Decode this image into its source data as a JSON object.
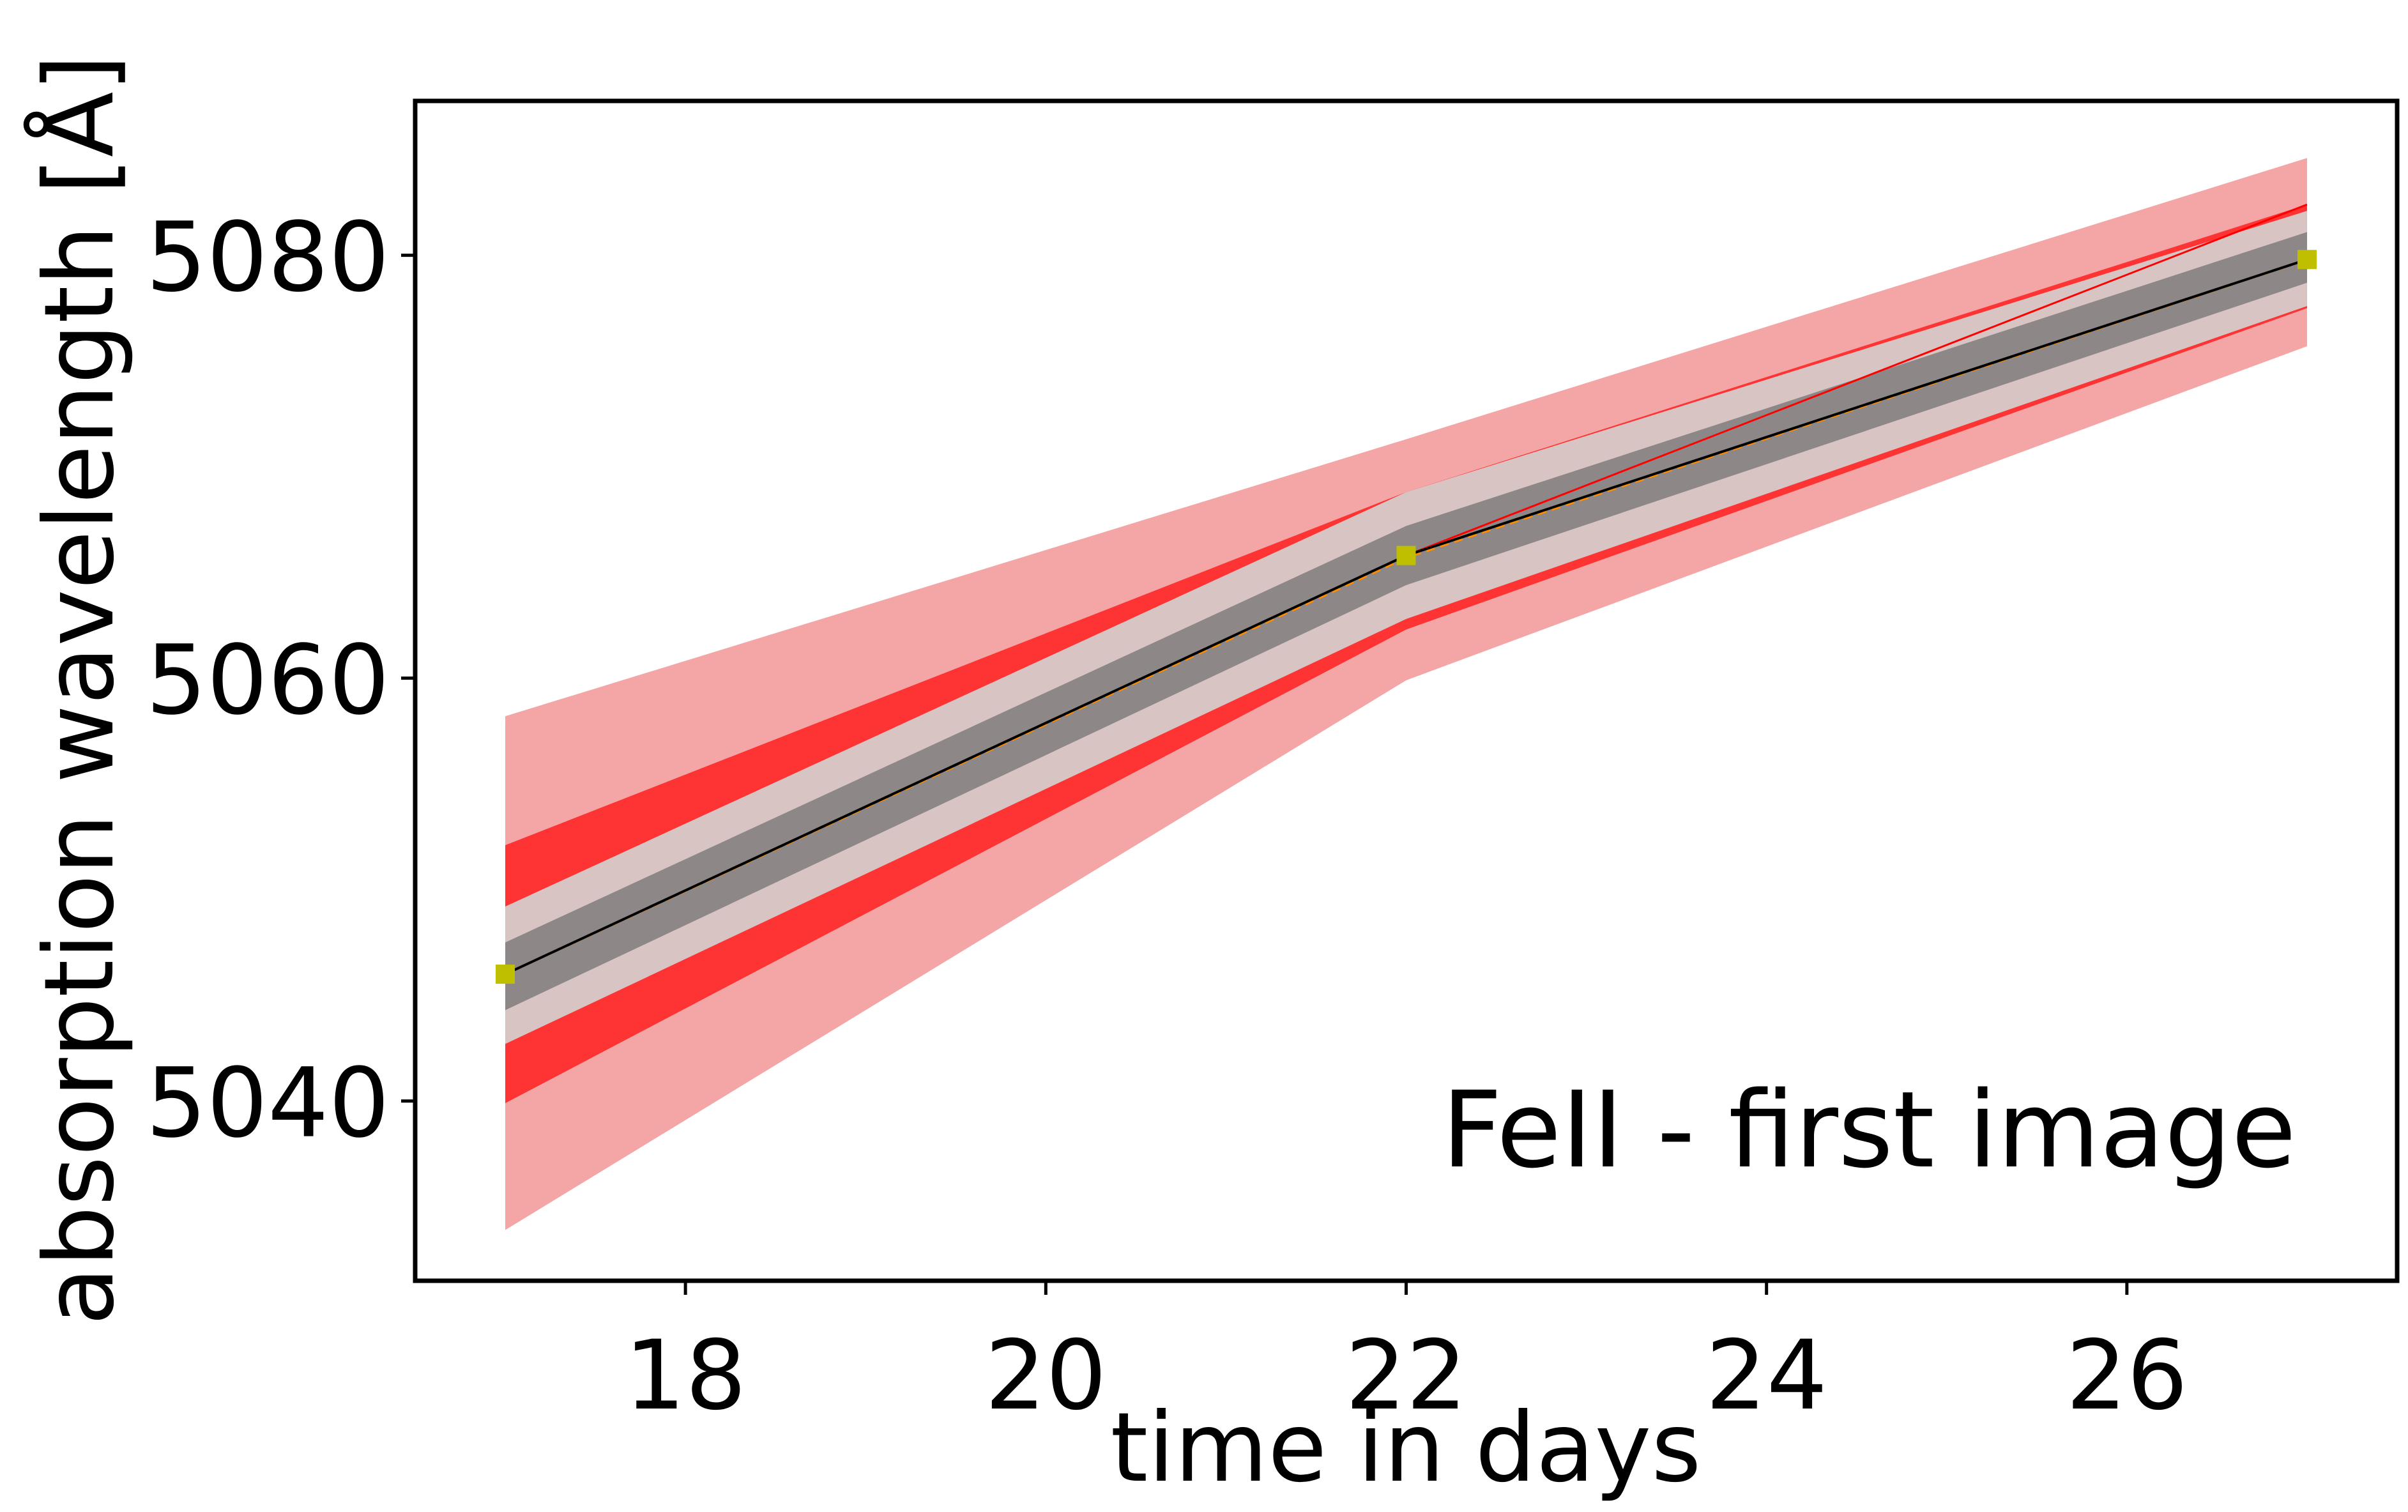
{
  "chart_data": {
    "type": "line",
    "annotation": "FeII - first image",
    "xlabel": "time in days",
    "ylabel": "absorption wavelength [Å]",
    "xlim": [
      16.5,
      27.5
    ],
    "ylim": [
      5031.5,
      5087.3
    ],
    "x_ticks": [
      18,
      20,
      22,
      24,
      26
    ],
    "y_ticks": [
      5040,
      5060,
      5080
    ],
    "grid": false,
    "x": [
      17,
      22,
      27
    ],
    "bands": [
      {
        "color": "#f4a5a6",
        "lower": [
          5033.9,
          5059.9,
          5075.7
        ],
        "upper": [
          5058.2,
          5071.3,
          5084.6
        ]
      },
      {
        "color": "#fe3333",
        "lower": [
          5039.9,
          5062.3,
          5077.5
        ],
        "upper": [
          5052.1,
          5068.8,
          5082.4
        ]
      },
      {
        "color": "#d9c4c4",
        "lower": [
          5042.7,
          5062.8,
          5077.6
        ],
        "upper": [
          5049.2,
          5068.8,
          5082.1
        ]
      },
      {
        "color": "#8d8787",
        "lower": [
          5044.3,
          5064.4,
          5078.7
        ],
        "upper": [
          5047.5,
          5067.2,
          5081.1
        ]
      }
    ],
    "series": [
      {
        "color": "#ff0000",
        "values": [
          5046.0,
          5065.8,
          5082.4
        ],
        "style": "solid-thin"
      },
      {
        "color": "#ff8c00",
        "values": [
          5046.0,
          5065.7,
          5079.8
        ],
        "style": "dashed"
      },
      {
        "color": "#000000",
        "values": [
          5046.0,
          5065.8,
          5079.8
        ],
        "style": "solid"
      },
      {
        "color": "#bfbf00",
        "values": [
          5046.0,
          5065.8,
          5079.8
        ],
        "style": "markers-square"
      }
    ]
  }
}
